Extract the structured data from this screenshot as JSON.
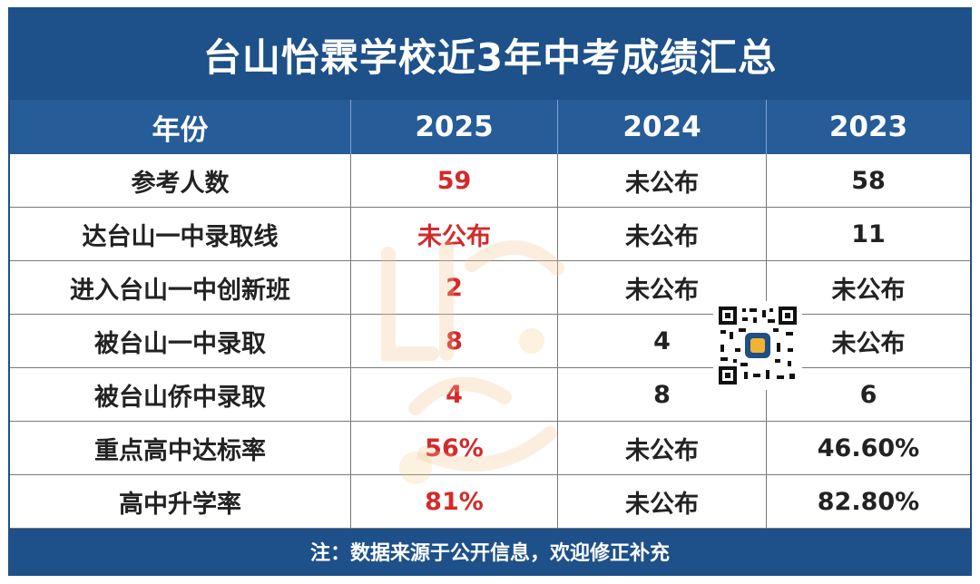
{
  "title": "台山怡霖学校近3年中考成绩汇总",
  "header": [
    "年份",
    "2025",
    "2024",
    "2023"
  ],
  "rows": [
    {
      "label": "参考人数",
      "y2025": "59",
      "y2024": "未公布",
      "y2023": "58"
    },
    {
      "label": "达台山一中录取线",
      "y2025": "未公布",
      "y2024": "未公布",
      "y2023": "11"
    },
    {
      "label": "进入台山一中创新班",
      "y2025": "2",
      "y2024": "未公布",
      "y2023": "未公布"
    },
    {
      "label": "被台山一中录取",
      "y2025": "8",
      "y2024": "4",
      "y2023": "未公布"
    },
    {
      "label": "被台山侨中录取",
      "y2025": "4",
      "y2024": "8",
      "y2023": "6"
    },
    {
      "label": "重点高中达标率",
      "y2025": "56%",
      "y2024": "未公布",
      "y2023": "46.60%"
    },
    {
      "label": "高中升学率",
      "y2025": "81%",
      "y2024": "未公布",
      "y2023": "82.80%"
    }
  ],
  "footer": "注：数据来源于公开信息，欢迎修正补充",
  "colors": {
    "title_bg": "#1e5089",
    "header_bg": "#265c98",
    "highlight": "#d42a2a"
  },
  "icons": {
    "qr": "qr-code-icon",
    "watermark": "brand-watermark-icon"
  }
}
